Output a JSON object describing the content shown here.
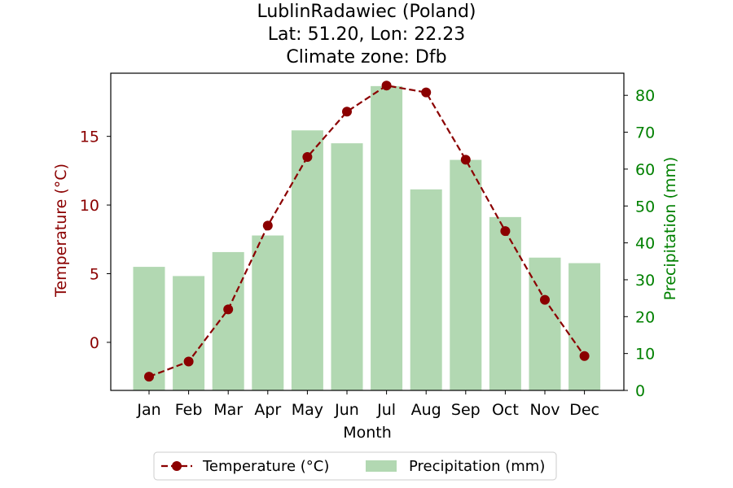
{
  "chart_data": {
    "type": "bar+line",
    "title_lines": [
      "LublinRadawiec (Poland)",
      "Lat: 51.20, Lon: 22.23",
      "Climate zone: Dfb"
    ],
    "xlabel": "Month",
    "ylabel_left": "Temperature (°C)",
    "ylabel_right": "Precipitation (mm)",
    "categories": [
      "Jan",
      "Feb",
      "Mar",
      "Apr",
      "May",
      "Jun",
      "Jul",
      "Aug",
      "Sep",
      "Oct",
      "Nov",
      "Dec"
    ],
    "temperature": [
      -2.5,
      -1.4,
      2.4,
      8.5,
      13.5,
      16.8,
      18.7,
      18.2,
      13.3,
      8.1,
      3.1,
      -1.0
    ],
    "precipitation": [
      33.5,
      31.0,
      37.5,
      42.0,
      70.5,
      67.0,
      82.5,
      54.5,
      62.5,
      47.0,
      36.0,
      34.5
    ],
    "ylim_left": [
      -3.5,
      19.6
    ],
    "ylim_right": [
      0,
      86
    ],
    "yticks_left": [
      0,
      5,
      10,
      15
    ],
    "yticks_right": [
      0,
      10,
      20,
      30,
      40,
      50,
      60,
      70,
      80
    ],
    "grid": false,
    "legend_position": "bottom-center",
    "legend": [
      "Temperature (°C)",
      "Precipitation (mm)"
    ],
    "colors": {
      "temperature": "#8b0000",
      "precipitation_bar": "#b2d8b2",
      "right_axis": "#008000",
      "left_axis": "#8b0000"
    }
  }
}
